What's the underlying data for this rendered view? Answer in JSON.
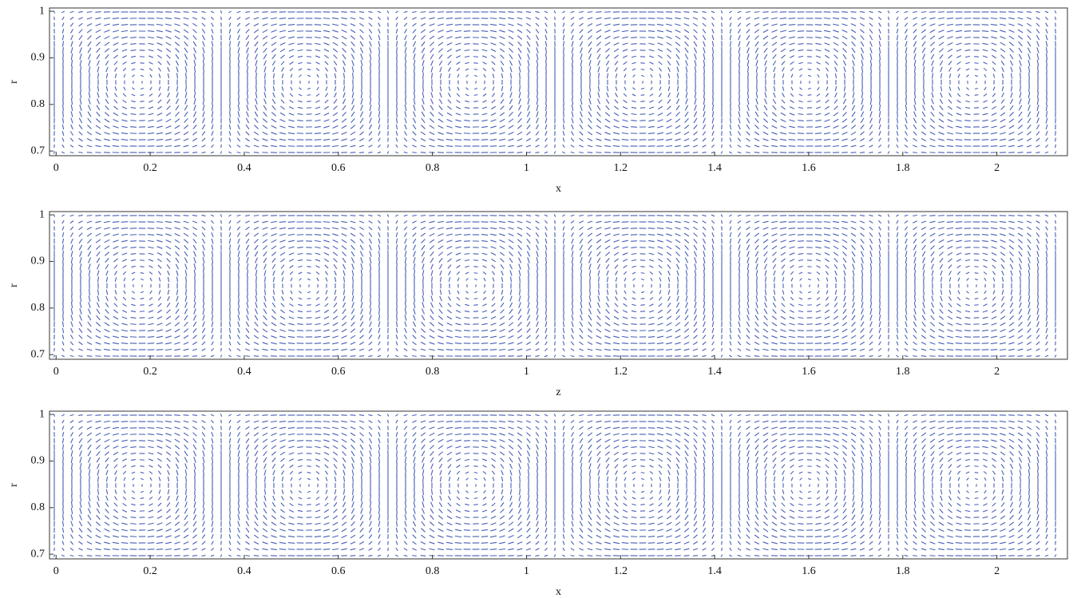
{
  "chart_data": [
    {
      "type": "quiver",
      "xlabel": "x",
      "ylabel": "r",
      "xlim": [
        -0.014,
        2.15
      ],
      "ylim": [
        0.69,
        1.007
      ],
      "xticks": [
        0,
        0.2,
        0.4,
        0.6,
        0.8,
        1,
        1.2,
        1.4,
        1.6,
        1.8,
        2
      ],
      "yticks": [
        0.7,
        0.8,
        0.9,
        1
      ]
    },
    {
      "type": "quiver",
      "xlabel": "z",
      "ylabel": "r",
      "xlim": [
        -0.014,
        2.15
      ],
      "ylim": [
        0.69,
        1.007
      ],
      "xticks": [
        0,
        0.2,
        0.4,
        0.6,
        0.8,
        1,
        1.2,
        1.4,
        1.6,
        1.8,
        2
      ],
      "yticks": [
        0.7,
        0.8,
        0.9,
        1
      ]
    },
    {
      "type": "quiver",
      "xlabel": "x",
      "ylabel": "r",
      "xlim": [
        -0.014,
        2.15
      ],
      "ylim": [
        0.69,
        1.007
      ],
      "xticks": [
        0,
        0.2,
        0.4,
        0.6,
        0.8,
        1,
        1.2,
        1.4,
        1.6,
        1.8,
        2
      ],
      "yticks": [
        0.7,
        0.8,
        0.9,
        1
      ]
    }
  ]
}
